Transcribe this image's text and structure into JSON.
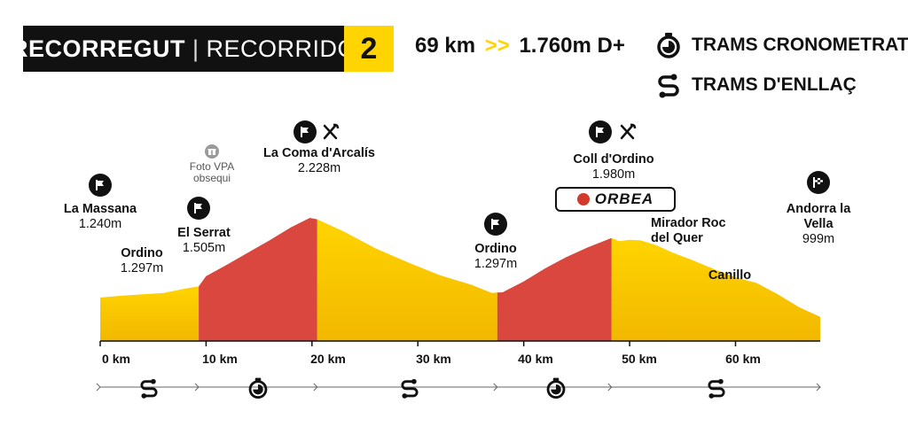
{
  "header": {
    "title": "RECORREGUT",
    "separator": "|",
    "subtitle": "RECORRIDO",
    "stage_number": "2",
    "distance": "69 km",
    "arrow": ">>",
    "elevation_gain": "1.760m D+"
  },
  "legend": [
    {
      "icon": "stopwatch-icon",
      "label": "TRAMS CRONOMETRATS"
    },
    {
      "icon": "route-link-icon",
      "label": "TRAMS D'ENLLAÇ"
    }
  ],
  "colors": {
    "timed": "#d9473e",
    "liaison": "#ffd400",
    "accent": "#ffd400",
    "ink": "#111111"
  },
  "profile": {
    "points": [
      {
        "km": 0,
        "alt": 1240
      },
      {
        "km": 2,
        "alt": 1262
      },
      {
        "km": 4,
        "alt": 1280
      },
      {
        "km": 6,
        "alt": 1297
      },
      {
        "km": 8,
        "alt": 1350
      },
      {
        "km": 9.3,
        "alt": 1378
      },
      {
        "km": 10,
        "alt": 1505
      },
      {
        "km": 12,
        "alt": 1650
      },
      {
        "km": 14,
        "alt": 1800
      },
      {
        "km": 16,
        "alt": 1950
      },
      {
        "km": 18,
        "alt": 2110
      },
      {
        "km": 19.8,
        "alt": 2228
      },
      {
        "km": 20.5,
        "alt": 2210
      },
      {
        "km": 23,
        "alt": 2060
      },
      {
        "km": 26,
        "alt": 1850
      },
      {
        "km": 29,
        "alt": 1680
      },
      {
        "km": 32,
        "alt": 1520
      },
      {
        "km": 35,
        "alt": 1400
      },
      {
        "km": 37,
        "alt": 1297
      },
      {
        "km": 38,
        "alt": 1305
      },
      {
        "km": 40,
        "alt": 1440
      },
      {
        "km": 42,
        "alt": 1600
      },
      {
        "km": 44,
        "alt": 1740
      },
      {
        "km": 46,
        "alt": 1860
      },
      {
        "km": 48.3,
        "alt": 1980
      },
      {
        "km": 49,
        "alt": 1940
      },
      {
        "km": 50,
        "alt": 1955
      },
      {
        "km": 51,
        "alt": 1950
      },
      {
        "km": 52.5,
        "alt": 1890
      },
      {
        "km": 54,
        "alt": 1800
      },
      {
        "km": 56,
        "alt": 1700
      },
      {
        "km": 58,
        "alt": 1590
      },
      {
        "km": 60,
        "alt": 1490
      },
      {
        "km": 62,
        "alt": 1420
      },
      {
        "km": 64,
        "alt": 1280
      },
      {
        "km": 66,
        "alt": 1120
      },
      {
        "km": 68,
        "alt": 999
      }
    ],
    "segments": [
      {
        "type": "liaison",
        "from": 0,
        "to": 9.3
      },
      {
        "type": "timed",
        "from": 9.3,
        "to": 20.5
      },
      {
        "type": "liaison",
        "from": 20.5,
        "to": 37.5
      },
      {
        "type": "timed",
        "from": 37.5,
        "to": 48.3
      },
      {
        "type": "liaison",
        "from": 48.3,
        "to": 68
      }
    ],
    "km_ticks": [
      "0 km",
      "10 km",
      "20 km",
      "30 km",
      "40 km",
      "50 km",
      "60 km"
    ],
    "km_values": [
      0,
      10,
      20,
      30,
      40,
      50,
      60
    ]
  },
  "places": {
    "la_massana": {
      "name": "La Massana",
      "alt": "1.240m"
    },
    "ordino1": {
      "name": "Ordino",
      "alt": "1.297m"
    },
    "el_serrat": {
      "name": "El Serrat",
      "alt": "1.505m"
    },
    "photo": {
      "line1": "Foto VPA",
      "line2": "obsequi"
    },
    "coma": {
      "name": "La Coma d'Arcalís",
      "alt": "2.228m"
    },
    "ordino2": {
      "name": "Ordino",
      "alt": "1.297m"
    },
    "coll": {
      "name": "Coll d'Ordino",
      "alt": "1.980m"
    },
    "sponsor": "ORBEA",
    "mirador": {
      "line1": "Mirador Roc",
      "line2": "del Quer"
    },
    "canillo": {
      "name": "Canillo"
    },
    "andorra": {
      "line1": "Andorra la",
      "line2": "Vella",
      "alt": "999m"
    }
  }
}
